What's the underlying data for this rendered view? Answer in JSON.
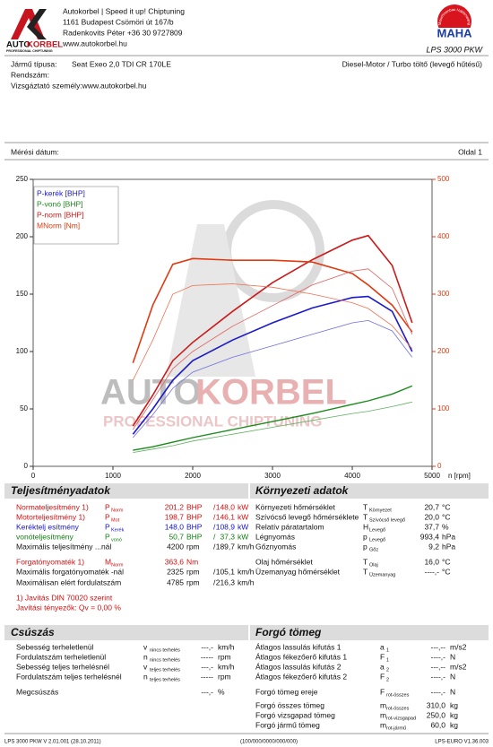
{
  "header": {
    "logo_a": "AUTO",
    "logo_b": "KORBEL",
    "logo_sub": "PROFESSIONAL CHIPTUNING",
    "address": [
      "Autokorbel | Speed it up! Chiptuning",
      "1161 Budapest Csömöri út 167/b",
      "Radenkovits Péter +36 30 9727809",
      "www.autokorbel.hu"
    ],
    "maha": "MAHA",
    "maha_ring": "Maschinenbau Haldenwang",
    "model": "LPS 3000 PKW"
  },
  "vehicle": {
    "type_label": "Jármű típusa:",
    "type": "Seat Exeo 2,0 TDI CR 170LE",
    "engine": "Diesel-Motor / Turbo töltő (levegő hűtésű)",
    "plate_label": "Rendszám:",
    "examiner": "Vizsgáztató személy:www.autokorbel.hu",
    "date_label": "Mérési dátum:",
    "page": "Oldal 1"
  },
  "chart_data": {
    "type": "line",
    "x": [
      1250,
      1500,
      1750,
      2000,
      2500,
      3000,
      3500,
      4000,
      4200,
      4500,
      4750
    ],
    "xlim": [
      0,
      5000
    ],
    "xticks": [
      0,
      1000,
      2000,
      3000,
      4000,
      5000
    ],
    "xlabel": "n [rpm]",
    "ylim": [
      0,
      250
    ],
    "yticks": [
      0,
      50,
      100,
      150,
      200,
      250
    ],
    "y2lim": [
      0,
      500
    ],
    "y2ticks": [
      0,
      100,
      200,
      300,
      400,
      500
    ],
    "y2color": "#e03a10",
    "watermark_a": "AUTO",
    "watermark_b": "KORBEL",
    "watermark_sub": "PROFESSIONAL CHIPTUNING",
    "series": [
      {
        "name": "P-kerék [BHP]",
        "color": "#1a1acc",
        "width": 1.6,
        "values": [
          28,
          50,
          75,
          92,
          110,
          125,
          138,
          147,
          148,
          135,
          100
        ]
      },
      {
        "name": "P-vonó [BHP]",
        "color": "#1a8a1a",
        "width": 1.4,
        "values": [
          14,
          17,
          21,
          25,
          32,
          39,
          46,
          54,
          57,
          63,
          70
        ]
      },
      {
        "name": "P-norm [BHP]",
        "color": "#cc1a1a",
        "width": 1.6,
        "values": [
          35,
          62,
          92,
          108,
          135,
          160,
          180,
          197,
          201,
          175,
          125
        ]
      },
      {
        "name": "MNorm [Nm]",
        "color": "#e03a10",
        "width": 1.6,
        "axis": "y2",
        "values": [
          180,
          281,
          352,
          362,
          359,
          359,
          356,
          336,
          316,
          281,
          234
        ]
      },
      {
        "color": "#6f6fe0",
        "width": 0.8,
        "values": [
          25,
          45,
          68,
          82,
          95,
          105,
          115,
          125,
          127,
          118,
          95
        ]
      },
      {
        "color": "#60b060",
        "width": 0.8,
        "values": [
          12,
          15,
          18,
          22,
          28,
          34,
          40,
          46,
          48,
          52,
          56
        ]
      },
      {
        "color": "#e06060",
        "width": 0.8,
        "values": [
          32,
          58,
          85,
          100,
          122,
          140,
          158,
          170,
          172,
          155,
          115
        ]
      },
      {
        "color": "#f07050",
        "width": 0.8,
        "axis": "y2",
        "values": [
          150,
          220,
          300,
          315,
          318,
          312,
          300,
          285,
          275,
          245,
          205
        ]
      }
    ]
  },
  "sections": [
    {
      "title": "Teljesítményadatok",
      "rows": [
        {
          "label": "Normateljesítmény 1)",
          "sym": "P",
          "sub": "Norm",
          "value": "201,2",
          "unit": "BHP",
          "sep": "/",
          "value2": "148,0",
          "unit2": "kW",
          "color": "#d01010"
        },
        {
          "label": "Motorteljesítmény 1)",
          "sym": "P",
          "sub": "Mot",
          "value": "198,7",
          "unit": "BHP",
          "sep": "/",
          "value2": "146,1",
          "unit2": "kW",
          "color": "#d01010"
        },
        {
          "label": "Keréktelj esítmény",
          "sym": "P",
          "sub": "Kerék",
          "value": "148,0",
          "unit": "BHP",
          "sep": "/",
          "value2": "108,9",
          "unit2": "kW",
          "color": "#1515c0"
        },
        {
          "label": "vonóteljesítmény",
          "sym": "P",
          "sub": "vonó",
          "value": "50,7",
          "unit": "BHP",
          "sep": "/",
          "value2": "37,3",
          "unit2": "kW",
          "color": "#108010"
        },
        {
          "label": "Maximális teljesítmény ...nál",
          "value": "4200",
          "unit": "rpm",
          "sep": "/",
          "value2": "189,7",
          "unit2": "km/h"
        },
        {
          "label": "Forgatónyomaték 1)",
          "sym": "M",
          "sub": "Norm",
          "value": "363,6",
          "unit": "Nm",
          "color": "#d01010"
        },
        {
          "label": "Maximális forgatónyomaték -nál",
          "value": "2325",
          "unit": "rpm",
          "sep": "/",
          "value2": "105,1",
          "unit2": "km/h"
        },
        {
          "label": "Maximálisan elért fordulatszám",
          "value": "4785",
          "unit": "rpm",
          "sep": "/",
          "value2": "216,3",
          "unit2": "km/h"
        },
        {
          "label": "1) Javítás DIN 70020 szerint",
          "color": "#d01010"
        },
        {
          "label": "   Javítási tényezők: Qv =   0,00 %",
          "color": "#d01010"
        }
      ]
    },
    {
      "title": "Környezeti adatok",
      "rows": [
        {
          "label": "Környezeti hőmérséklet",
          "sym": "T",
          "sub": "Környezet",
          "value": "20,7",
          "unit": "°C"
        },
        {
          "label": "Szívócső levegő hőmérséklete",
          "sym": "T",
          "sub": "Szívócső levegő",
          "value": "20,0",
          "unit": "°C"
        },
        {
          "label": "Relatív páratartalom",
          "sym": "H",
          "sub": "Levegő",
          "value": "37,7",
          "unit": "%"
        },
        {
          "label": "Légnyomás",
          "sym": "p",
          "sub": "Levegő",
          "value": "993,4",
          "unit": "hPa"
        },
        {
          "label": "Gőznyomás",
          "sym": "p",
          "sub": "Gőz",
          "value": "9,2",
          "unit": "hPa"
        },
        {
          "label": "Olaj hőmérséklet",
          "sym": "T",
          "sub": "Olaj",
          "value": "16,0",
          "unit": "°C"
        },
        {
          "label": "Üzemanyag hőmérséklet",
          "sym": "T",
          "sub": "Üzemanyag",
          "value": "----,-",
          "unit": "°C"
        }
      ]
    },
    {
      "title": "Csúszás",
      "rows": [
        {
          "label": "Sebesség terheletlenül",
          "sym": "v",
          "sub": "nincs terhelés",
          "value": "---,-",
          "unit": "km/h"
        },
        {
          "label": "Fordulatszám terheletlenül",
          "sym": "n",
          "sub": "nincs terhelés",
          "value": "-----",
          "unit": "rpm"
        },
        {
          "label": "Sebesség teljes terhelésnél",
          "sym": "v",
          "sub": "teljes terhelés",
          "value": "---,-",
          "unit": "km/h"
        },
        {
          "label": "Fordulatszám teljes terhelésnél",
          "sym": "n",
          "sub": "teljes terhelés",
          "value": "-----",
          "unit": "rpm"
        },
        {
          "label": "Megcsúszás",
          "value": "---,-",
          "unit": "%"
        }
      ]
    },
    {
      "title": "Forgó tömeg",
      "rows": [
        {
          "label": "Átlagos lassulás kifutás 1",
          "sym": "a",
          "sub": "1",
          "value": "---,--",
          "unit": "m/s2"
        },
        {
          "label": "Átlagos fékezőerő kifutás 1",
          "sym": "F",
          "sub": "1",
          "value": "----,-",
          "unit": "N"
        },
        {
          "label": "Átlagos lassulás kifutás 2",
          "sym": "a",
          "sub": "2",
          "value": "---,--",
          "unit": "m/s2"
        },
        {
          "label": "Átlagos fékezőerő kifutás 2",
          "sym": "F",
          "sub": "2",
          "value": "----,-",
          "unit": "N"
        },
        {
          "label": "Forgó tömeg ereje",
          "sym": "F",
          "sub": "rot-összes",
          "value": "----,-",
          "unit": "N"
        },
        {
          "label": "Forgó összes tömeg",
          "sym": "m",
          "sub": "rot-összes",
          "value": "310,0",
          "unit": "kg"
        },
        {
          "label": "Forgó vizsgapad tömeg",
          "sym": "m",
          "sub": "rot-vizsgapad",
          "value": "250,0",
          "unit": "kg"
        },
        {
          "label": "Forgó jármű tömeg",
          "sym": "m",
          "sub": "rot-jármű",
          "value": "60,0",
          "unit": "kg"
        }
      ]
    }
  ],
  "footer": [
    "LPS 3000 PKW V 2.01.001 (28.10.2011)",
    "(100/000/0000/000/000)",
    "LPS-EURO V1.36.003"
  ]
}
